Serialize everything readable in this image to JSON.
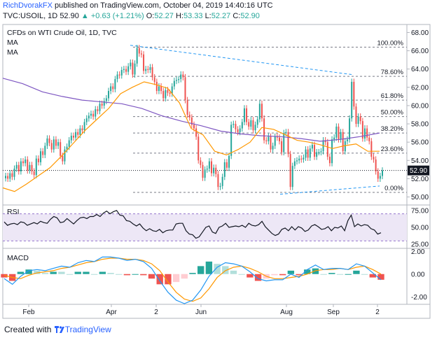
{
  "header": {
    "author": "RichDvorakFX",
    "published_text": "published on TradingView.com, October 04, 2019 14:40:16 UTC",
    "symbol_line": "TVC:USOIL, 1D",
    "last": "52.90",
    "change": "▲ +0.63 (+1.21%)",
    "o_label": "O:",
    "o_value": "52.27",
    "h_label": "H:",
    "h_value": "53.33",
    "l_label": "L:",
    "l_value": "52.27",
    "c_label": "C:",
    "c_value": "52.90"
  },
  "footer": {
    "created_with": "Created with",
    "brand": "TradingView"
  },
  "colors": {
    "up": "#26a69a",
    "down": "#ef5350",
    "ma_short": "#ff9800",
    "ma_long": "#7e57c2",
    "fib": "#787b86",
    "trend": "#2196f3",
    "rsi_band": "#ede7f6",
    "rsi_line": "#131722",
    "macd": "#2196f3",
    "signal": "#ff9800"
  },
  "chart_data": [
    {
      "type": "candlestick",
      "title": "CFDs on WTI Crude Oil, 1D, TVC",
      "legend": [
        "MA",
        "MA"
      ],
      "y_axis_ticks": [
        "68.00",
        "66.00",
        "64.00",
        "62.00",
        "60.00",
        "58.00",
        "56.00",
        "54.00",
        "52.00",
        "50.00"
      ],
      "ylim": [
        49.2,
        68.8
      ],
      "x_axis_ticks": [
        "Feb",
        "Apr",
        "2",
        "Jun",
        "Aug",
        "Sep",
        "2"
      ],
      "last_price_label": "52.90",
      "fib_levels": [
        {
          "label": "100.00%",
          "value": 66.4
        },
        {
          "label": "78.60%",
          "value": 63.2
        },
        {
          "label": "61.80%",
          "value": 60.6
        },
        {
          "label": "50.00%",
          "value": 58.8
        },
        {
          "label": "38.20%",
          "value": 57.0
        },
        {
          "label": "23.60%",
          "value": 54.8
        },
        {
          "label": "0.00%",
          "value": 50.5
        }
      ],
      "candles_close": [
        52.3,
        52.0,
        52.6,
        52.2,
        53.1,
        53.5,
        52.8,
        53.9,
        53.7,
        54.1,
        52.9,
        53.5,
        52.8,
        52.4,
        54.2,
        53.8,
        55.0,
        54.6,
        55.6,
        56.4,
        55.9,
        55.2,
        56.3,
        55.6,
        56.0,
        54.5,
        53.9,
        55.2,
        55.5,
        56.2,
        56.7,
        56.5,
        57.1,
        56.8,
        57.5,
        57.3,
        58.2,
        58.6,
        58.9,
        59.1,
        58.8,
        59.6,
        59.4,
        60.2,
        60.0,
        60.5,
        60.8,
        61.6,
        62.1,
        61.8,
        62.9,
        63.4,
        63.3,
        63.9,
        64.0,
        63.7,
        64.3,
        64.7,
        63.4,
        64.6,
        66.3,
        65.7,
        65.6,
        63.8,
        64.0,
        63.9,
        64.2,
        63.1,
        62.6,
        61.6,
        62.1,
        61.6,
        60.8,
        61.7,
        61.4,
        61.3,
        62.1,
        62.7,
        62.8,
        62.9,
        63.4,
        63.1,
        60.6,
        59.0,
        58.7,
        57.9,
        57.5,
        56.6,
        54.0,
        53.5,
        52.1,
        53.0,
        53.1,
        53.9,
        52.6,
        53.2,
        52.5,
        51.1,
        51.2,
        52.2,
        53.8,
        53.2,
        54.5,
        57.9,
        58.0,
        57.4,
        57.1,
        57.5,
        58.2,
        59.7,
        58.2,
        57.7,
        58.4,
        57.3,
        57.9,
        58.5,
        60.2,
        58.6,
        56.2,
        56.1,
        56.6,
        55.2,
        55.6,
        56.6,
        56.5,
        56.1,
        54.9,
        57.0,
        57.1,
        54.7,
        51.1,
        53.4,
        53.9,
        54.0,
        54.2,
        54.1,
        54.3,
        55.2,
        54.3,
        55.3,
        55.7,
        54.4,
        54.9,
        54.9,
        55.0,
        56.2,
        56.0,
        54.4,
        53.7,
        56.3,
        56.5,
        57.7,
        56.3,
        57.1,
        55.0,
        56.1,
        56.3,
        58.6,
        62.6,
        59.9,
        58.0,
        58.8,
        58.3,
        56.4,
        57.5,
        56.5,
        56.1,
        54.4,
        54.1,
        52.8,
        52.0,
        52.3,
        52.9
      ],
      "ma_short_values": [
        51.0,
        50.6,
        51.4,
        52.3,
        53.2,
        54.5,
        55.9,
        57.3,
        58.5,
        59.7,
        61.3,
        62.0,
        62.6,
        62.3,
        61.9,
        60.3,
        57.5,
        56.8,
        55.0,
        54.6,
        55.2,
        56.0,
        57.6,
        57.4,
        56.8,
        56.2,
        56.0,
        55.7,
        55.3,
        55.6,
        55.8,
        55.0,
        55.0
      ],
      "ma_long_values": [
        63.0,
        62.4,
        61.5,
        61.0,
        60.6,
        60.4,
        60.2,
        59.7,
        58.9,
        58.3,
        57.8,
        57.2,
        56.9,
        56.7,
        56.6,
        56.4,
        56.1,
        56.3,
        56.6,
        57.0
      ],
      "rsi": {
        "label": "RSI",
        "y_axis_ticks": [
          "75.00",
          "50.00",
          "25.00"
        ],
        "ylim": [
          20,
          82
        ],
        "band": [
          30,
          70
        ],
        "values": [
          58,
          53,
          55,
          56,
          54,
          58,
          57,
          53,
          55,
          57,
          55,
          59,
          57,
          56,
          62,
          66,
          64,
          57,
          58,
          63,
          59,
          55,
          60,
          64,
          65,
          63,
          66,
          66,
          69,
          66,
          71,
          74,
          70,
          73,
          75,
          68,
          67,
          60,
          59,
          55,
          52,
          55,
          49,
          45,
          48,
          45,
          44,
          47,
          42,
          45,
          46,
          46,
          55,
          56,
          56,
          45,
          40,
          39,
          34,
          36,
          43,
          50,
          52,
          43,
          41,
          50,
          52,
          56,
          50,
          51,
          52,
          51,
          53,
          50,
          56,
          53,
          52,
          54,
          59,
          51,
          46,
          41,
          38,
          40,
          47,
          49,
          45,
          51,
          46,
          51,
          49,
          44,
          46,
          52,
          54,
          51,
          47,
          48,
          51,
          45,
          50,
          49,
          52,
          45,
          60,
          68,
          51,
          55,
          52,
          54,
          53,
          48,
          46,
          40,
          42
        ]
      },
      "macd": {
        "label": "MACD",
        "y_axis_ticks": [
          "2.00",
          "0.00",
          "-2.00"
        ],
        "ylim": [
          -2.6,
          2.2
        ],
        "macd_values": [
          -0.4,
          -0.9,
          -0.2,
          0.3,
          0.4,
          0.3,
          0.5,
          0.7,
          0.6,
          1.0,
          1.2,
          1.1,
          1.5,
          1.5,
          1.4,
          1.2,
          1.3,
          1.1,
          0.5,
          -0.6,
          -1.6,
          -2.3,
          -2.6,
          -2.3,
          -1.4,
          -0.2,
          0.6,
          1.0,
          0.9,
          0.7,
          0.2,
          -0.4,
          -0.6,
          -0.5,
          -0.5,
          0.0,
          -0.3,
          0.4,
          0.8,
          0.4,
          0.5,
          0.5,
          0.4,
          0.9,
          0.7,
          0.1,
          -0.5
        ],
        "signal_values": [
          -0.1,
          -0.3,
          -0.4,
          -0.1,
          0.1,
          0.2,
          0.3,
          0.5,
          0.6,
          0.8,
          1.0,
          1.1,
          1.3,
          1.4,
          1.4,
          1.3,
          1.3,
          1.2,
          0.9,
          0.3,
          -0.7,
          -1.6,
          -2.2,
          -2.4,
          -2.1,
          -1.3,
          -0.3,
          0.3,
          0.6,
          0.7,
          0.5,
          0.2,
          -0.2,
          -0.4,
          -0.4,
          -0.3,
          -0.2,
          0.0,
          0.3,
          0.4,
          0.4,
          0.5,
          0.4,
          0.6,
          0.7,
          0.4,
          0.0
        ]
      }
    }
  ]
}
